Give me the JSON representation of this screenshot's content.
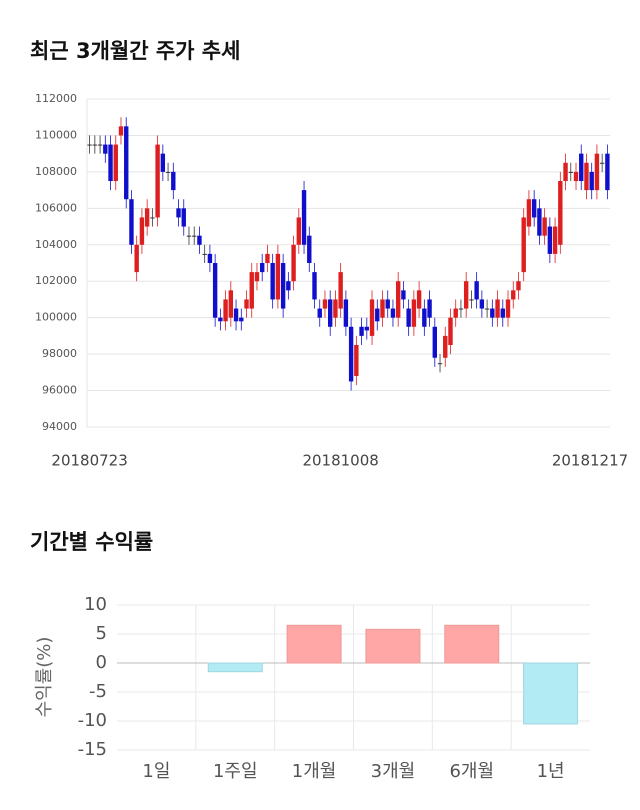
{
  "chart_data": [
    {
      "type": "candlestick",
      "title": "최근 3개월간 주가 추세",
      "categories": [
        "20180723",
        null,
        null,
        null,
        null,
        null,
        null,
        null,
        null,
        null,
        null,
        null,
        null,
        null,
        null,
        null,
        null,
        null,
        null,
        null,
        null,
        null,
        null,
        null,
        null,
        null,
        null,
        null,
        null,
        null,
        null,
        null,
        null,
        null,
        null,
        null,
        null,
        null,
        null,
        null,
        null,
        null,
        null,
        null,
        null,
        null,
        null,
        null,
        "20181008",
        null,
        null,
        null,
        null,
        null,
        null,
        null,
        null,
        null,
        null,
        null,
        null,
        null,
        null,
        null,
        null,
        null,
        null,
        null,
        null,
        null,
        null,
        null,
        null,
        null,
        null,
        null,
        null,
        null,
        null,
        null,
        null,
        null,
        null,
        null,
        null,
        null,
        null,
        null,
        null,
        null,
        null,
        null,
        null,
        null,
        null,
        null,
        null,
        null,
        null,
        "20181217"
      ],
      "open": [
        109500,
        109500,
        109500,
        109500,
        109500,
        107500,
        110000,
        110500,
        106500,
        102500,
        104000,
        105000,
        105500,
        105500,
        109000,
        108000,
        108000,
        106000,
        106000,
        104500,
        104500,
        104500,
        103500,
        103500,
        103000,
        100000,
        99800,
        100000,
        100500,
        100000,
        100500,
        100500,
        102000,
        103000,
        103000,
        103000,
        101000,
        103000,
        102000,
        102000,
        104000,
        107000,
        104500,
        102500,
        100500,
        100500,
        101000,
        100000,
        100500,
        101000,
        99500,
        96800,
        99500,
        99500,
        99000,
        100500,
        100000,
        101000,
        100500,
        100000,
        101500,
        100500,
        99500,
        100500,
        100500,
        101000,
        99500,
        97500,
        97800,
        98500,
        100000,
        100500,
        100500,
        101000,
        102000,
        101000,
        100500,
        100500,
        100000,
        100500,
        100000,
        101000,
        101500,
        102500,
        105000,
        106500,
        106000,
        104500,
        105000,
        103500,
        104000,
        107500,
        108000,
        107500,
        109000,
        107000,
        108000,
        107000,
        108500,
        109000
      ],
      "high": [
        110000,
        110000,
        110000,
        110000,
        110000,
        110000,
        111000,
        111000,
        107000,
        104500,
        106000,
        106500,
        106000,
        110000,
        109500,
        108500,
        108500,
        106500,
        106500,
        105000,
        105000,
        105000,
        104000,
        104000,
        103500,
        100500,
        101500,
        102000,
        101000,
        100500,
        101500,
        103000,
        103000,
        103500,
        104000,
        103500,
        104000,
        103500,
        102500,
        104500,
        106000,
        107500,
        105000,
        103000,
        101000,
        101500,
        101500,
        101500,
        103000,
        101500,
        100000,
        99000,
        100000,
        100000,
        101500,
        101000,
        101500,
        101500,
        101000,
        102500,
        102000,
        101000,
        101500,
        102000,
        101000,
        101500,
        100000,
        98000,
        99500,
        100500,
        101000,
        101000,
        102500,
        101500,
        102500,
        101500,
        101000,
        101000,
        101500,
        101000,
        101500,
        102000,
        102500,
        106000,
        107000,
        107000,
        106500,
        106000,
        105500,
        105500,
        108000,
        109000,
        108500,
        108500,
        109500,
        109000,
        108500,
        109500,
        109000,
        109500
      ],
      "low": [
        109000,
        109000,
        109000,
        108500,
        107000,
        107000,
        109500,
        106000,
        103500,
        102000,
        103500,
        104500,
        105000,
        105000,
        107500,
        107500,
        106500,
        105000,
        104500,
        104000,
        104000,
        103500,
        103000,
        102500,
        99500,
        99300,
        99300,
        99500,
        99300,
        99300,
        100000,
        100000,
        101500,
        102000,
        102500,
        100500,
        100500,
        100000,
        101000,
        101500,
        103500,
        103500,
        102500,
        100500,
        99500,
        100000,
        99000,
        99500,
        100000,
        99000,
        96000,
        96300,
        98500,
        98800,
        98500,
        99300,
        99500,
        100000,
        99500,
        99500,
        100500,
        99000,
        99000,
        100000,
        99000,
        99500,
        97300,
        97000,
        97300,
        98000,
        99500,
        100000,
        100000,
        100500,
        100500,
        100000,
        100000,
        99500,
        99500,
        99500,
        99500,
        100500,
        101000,
        102000,
        104500,
        105000,
        104000,
        104000,
        103000,
        103000,
        103500,
        107000,
        107500,
        107000,
        107000,
        106500,
        106500,
        106500,
        108000,
        106500
      ],
      "close": [
        109500,
        109500,
        109500,
        109000,
        107500,
        109500,
        110500,
        106500,
        104000,
        104000,
        105500,
        106000,
        105500,
        109500,
        108000,
        108000,
        107000,
        105500,
        105000,
        104500,
        104500,
        104000,
        103500,
        103000,
        100000,
        99800,
        101000,
        101500,
        99800,
        99800,
        101000,
        102500,
        102500,
        102500,
        103500,
        101000,
        103500,
        100500,
        101500,
        104000,
        105500,
        104000,
        103000,
        101000,
        100000,
        101000,
        99500,
        101000,
        102500,
        99500,
        96500,
        98500,
        99000,
        99300,
        101000,
        99800,
        101000,
        100500,
        100000,
        102000,
        101000,
        99500,
        101000,
        101500,
        99500,
        100000,
        97800,
        97500,
        99000,
        100000,
        100500,
        100500,
        102000,
        101000,
        101000,
        100500,
        100500,
        100000,
        101000,
        100000,
        101000,
        101500,
        102000,
        105500,
        106500,
        105500,
        104500,
        105500,
        103500,
        105000,
        107500,
        108500,
        108000,
        108000,
        107500,
        108500,
        107000,
        109000,
        108500,
        107000
      ],
      "up_color": "#dd1f1f",
      "down_color": "#1010cc",
      "flat_color": "#333333",
      "ylim": [
        94000,
        112000
      ],
      "yticks": [
        94000,
        96000,
        98000,
        100000,
        102000,
        104000,
        106000,
        108000,
        110000,
        112000
      ],
      "grid": true
    },
    {
      "type": "bar",
      "title": "기간별 수익률",
      "ylabel": "수익률(%)",
      "categories": [
        "1일",
        "1주일",
        "1개월",
        "3개월",
        "6개월",
        "1년"
      ],
      "values": [
        0,
        -1.5,
        6.5,
        5.8,
        6.5,
        -10.5
      ],
      "colors": [
        "#ffa6a6",
        "#b3ebf5",
        "#ffa6a6",
        "#ffa6a6",
        "#ffa6a6",
        "#b3ebf5"
      ],
      "ylim": [
        -15,
        10
      ],
      "yticks": [
        10,
        5,
        0,
        -5,
        -10,
        -15
      ],
      "grid": true
    }
  ]
}
